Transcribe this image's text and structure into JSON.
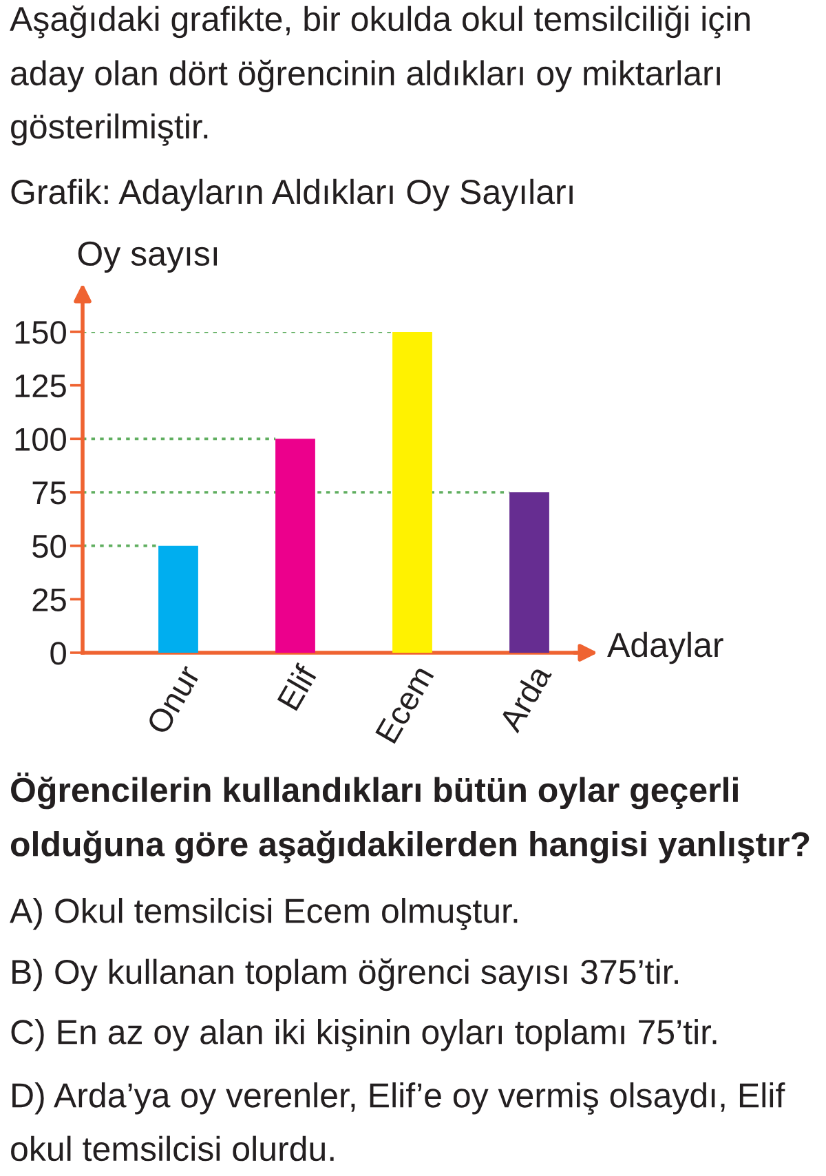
{
  "chart_data": {
    "type": "bar",
    "title": "Grafik: Adayların Aldıkları Oy Sayıları",
    "xlabel": "Adaylar",
    "ylabel": "Oy sayısı",
    "categories": [
      "Onur",
      "Elif",
      "Ecem",
      "Arda"
    ],
    "values": [
      50,
      100,
      150,
      75
    ],
    "colors": [
      "#00aeef",
      "#ec008c",
      "#fff200",
      "#662d91"
    ],
    "ylim": [
      0,
      150
    ],
    "yticks": [
      0,
      25,
      50,
      75,
      100,
      125,
      150
    ],
    "ref_lines": [
      {
        "axis": "y",
        "value": 150,
        "color": "#5fae5f",
        "line_style": "dotted"
      },
      {
        "axis": "y",
        "value": 100,
        "color": "#5fae5f",
        "line_style": "dotted"
      },
      {
        "axis": "y",
        "value": 75,
        "color": "#5fae5f",
        "line_style": "dotted"
      },
      {
        "axis": "y",
        "value": 50,
        "color": "#5fae5f",
        "line_style": "dotted"
      }
    ],
    "annotations": [
      "Aşağıdaki grafikte, bir okulda okul temsilciliği için aday olan dört öğrencinin aldıkları oy miktarları gösterilmiştir.",
      "Öğrencilerin kullandıkları bütün oylar geçerli olduğuna göre aşağıdakilerden hangisi yanlıştır?",
      "A) Okul temsilcisi Ecem olmuştur.",
      "B) Oy kullanan toplam öğrenci sayısı 375’tir.",
      "C) En az oy alan iki kişinin oyları toplamı 75’tir.",
      "D) Arda’ya oy verenler, Elif’e oy vermiş olsaydı, Elif okul temsilcisi olurdu."
    ]
  }
}
